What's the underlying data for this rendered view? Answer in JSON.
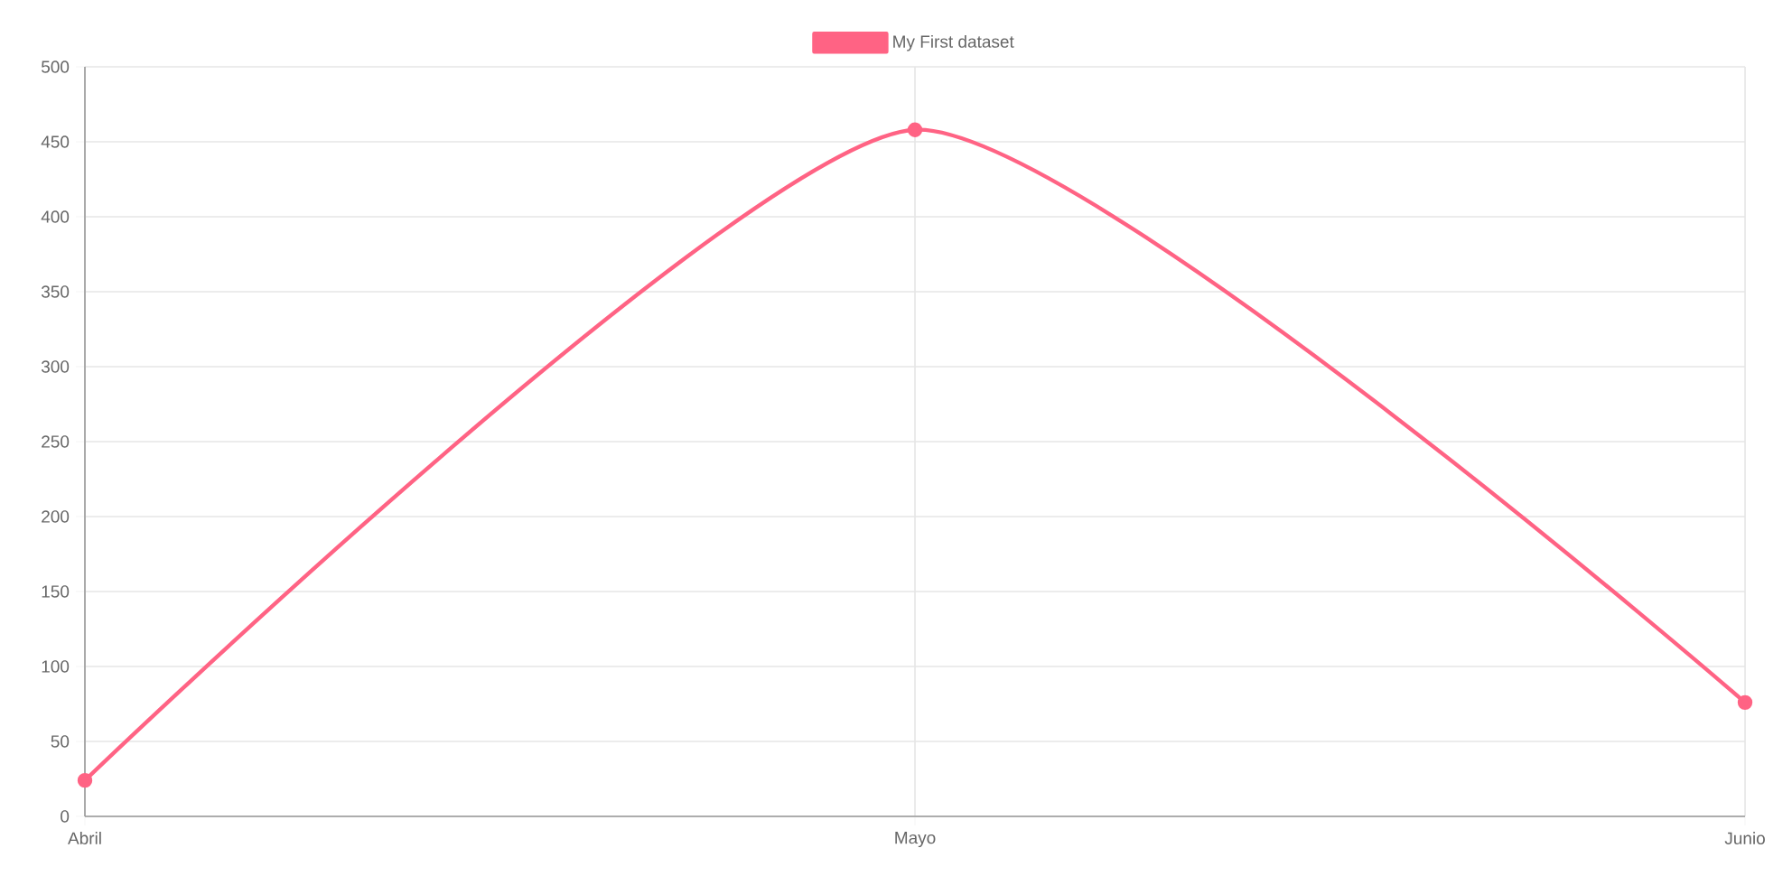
{
  "chart_data": {
    "type": "line",
    "categories": [
      "Abril",
      "Mayo",
      "Junio"
    ],
    "series": [
      {
        "name": "My First dataset",
        "color": "#ff6384",
        "values": [
          24,
          458,
          76
        ]
      }
    ],
    "ylim": [
      0,
      500
    ],
    "yticks": [
      0,
      50,
      100,
      150,
      200,
      250,
      300,
      350,
      400,
      450,
      500
    ],
    "grid": true,
    "legend": "top",
    "marker": "circle",
    "line_style": "solid"
  }
}
